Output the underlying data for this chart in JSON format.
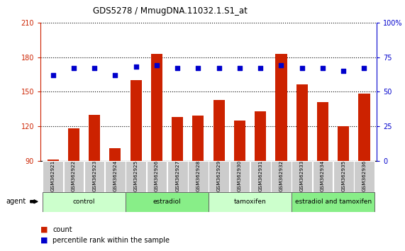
{
  "title": "GDS5278 / MmugDNA.11032.1.S1_at",
  "samples": [
    "GSM362921",
    "GSM362922",
    "GSM362923",
    "GSM362924",
    "GSM362925",
    "GSM362926",
    "GSM362927",
    "GSM362928",
    "GSM362929",
    "GSM362930",
    "GSM362931",
    "GSM362932",
    "GSM362933",
    "GSM362934",
    "GSM362935",
    "GSM362936"
  ],
  "counts": [
    91,
    118,
    130,
    101,
    160,
    183,
    128,
    129,
    143,
    125,
    133,
    183,
    156,
    141,
    120,
    148
  ],
  "percentile_ranks": [
    62,
    67,
    67,
    62,
    68,
    69,
    67,
    67,
    67,
    67,
    67,
    69,
    67,
    67,
    65,
    67
  ],
  "groups": [
    {
      "label": "control",
      "start": 0,
      "end": 4,
      "color": "#ccffcc"
    },
    {
      "label": "estradiol",
      "start": 4,
      "end": 8,
      "color": "#88ee88"
    },
    {
      "label": "tamoxifen",
      "start": 8,
      "end": 12,
      "color": "#ccffcc"
    },
    {
      "label": "estradiol and tamoxifen",
      "start": 12,
      "end": 16,
      "color": "#88ee88"
    }
  ],
  "bar_color": "#cc2200",
  "dot_color": "#0000cc",
  "ylim_left": [
    90,
    210
  ],
  "ylim_right": [
    0,
    100
  ],
  "yticks_left": [
    90,
    120,
    150,
    180,
    210
  ],
  "yticks_right": [
    0,
    25,
    50,
    75,
    100
  ],
  "left_axis_color": "#cc2200",
  "right_axis_color": "#0000cc",
  "tick_label_bg": "#cccccc",
  "agent_label": "agent",
  "legend_count": "count",
  "legend_percentile": "percentile rank within the sample"
}
